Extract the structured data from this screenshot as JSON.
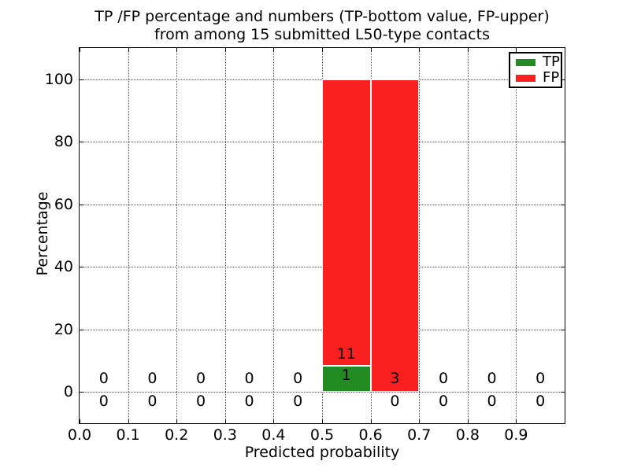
{
  "chart_data": {
    "type": "bar",
    "stacked": true,
    "title_lines": [
      "TP /FP percentage and numbers (TP-bottom value, FP-upper)",
      "from among 15 submitted L50-type contacts"
    ],
    "xlabel": "Predicted probability",
    "ylabel": "Percentage",
    "xlim": [
      0.0,
      1.0
    ],
    "ylim": [
      -10,
      110
    ],
    "grid": true,
    "xticks": [
      {
        "value": 0.0,
        "label": "0.0"
      },
      {
        "value": 0.1,
        "label": "0.1"
      },
      {
        "value": 0.2,
        "label": "0.2"
      },
      {
        "value": 0.3,
        "label": "0.3"
      },
      {
        "value": 0.4,
        "label": "0.4"
      },
      {
        "value": 0.5,
        "label": "0.5"
      },
      {
        "value": 0.6,
        "label": "0.6"
      },
      {
        "value": 0.7,
        "label": "0.7"
      },
      {
        "value": 0.8,
        "label": "0.8"
      },
      {
        "value": 0.9,
        "label": "0.9"
      }
    ],
    "yticks": [
      {
        "value": 0,
        "label": "0"
      },
      {
        "value": 20,
        "label": "20"
      },
      {
        "value": 40,
        "label": "40"
      },
      {
        "value": 60,
        "label": "60"
      },
      {
        "value": 80,
        "label": "80"
      },
      {
        "value": 100,
        "label": "100"
      }
    ],
    "bin_width": 0.1,
    "bins": [
      {
        "center": 0.05,
        "tp_count": 0,
        "fp_count": 0,
        "tp_pct": 0,
        "fp_pct": 0
      },
      {
        "center": 0.15,
        "tp_count": 0,
        "fp_count": 0,
        "tp_pct": 0,
        "fp_pct": 0
      },
      {
        "center": 0.25,
        "tp_count": 0,
        "fp_count": 0,
        "tp_pct": 0,
        "fp_pct": 0
      },
      {
        "center": 0.35,
        "tp_count": 0,
        "fp_count": 0,
        "tp_pct": 0,
        "fp_pct": 0
      },
      {
        "center": 0.45,
        "tp_count": 0,
        "fp_count": 0,
        "tp_pct": 0,
        "fp_pct": 0
      },
      {
        "center": 0.55,
        "tp_count": 1,
        "fp_count": 11,
        "tp_pct": 8.333,
        "fp_pct": 91.667
      },
      {
        "center": 0.65,
        "tp_count": 0,
        "fp_count": 3,
        "tp_pct": 0,
        "fp_pct": 100
      },
      {
        "center": 0.75,
        "tp_count": 0,
        "fp_count": 0,
        "tp_pct": 0,
        "fp_pct": 0
      },
      {
        "center": 0.85,
        "tp_count": 0,
        "fp_count": 0,
        "tp_pct": 0,
        "fp_pct": 0
      },
      {
        "center": 0.95,
        "tp_count": 0,
        "fp_count": 0,
        "tp_pct": 0,
        "fp_pct": 0
      }
    ],
    "colors": {
      "tp": "#228b22",
      "fp": "#fb2020"
    },
    "legend": {
      "position": "upper right",
      "entries": [
        {
          "label": "TP",
          "color": "#228b22"
        },
        {
          "label": "FP",
          "color": "#fb2020"
        }
      ]
    }
  }
}
